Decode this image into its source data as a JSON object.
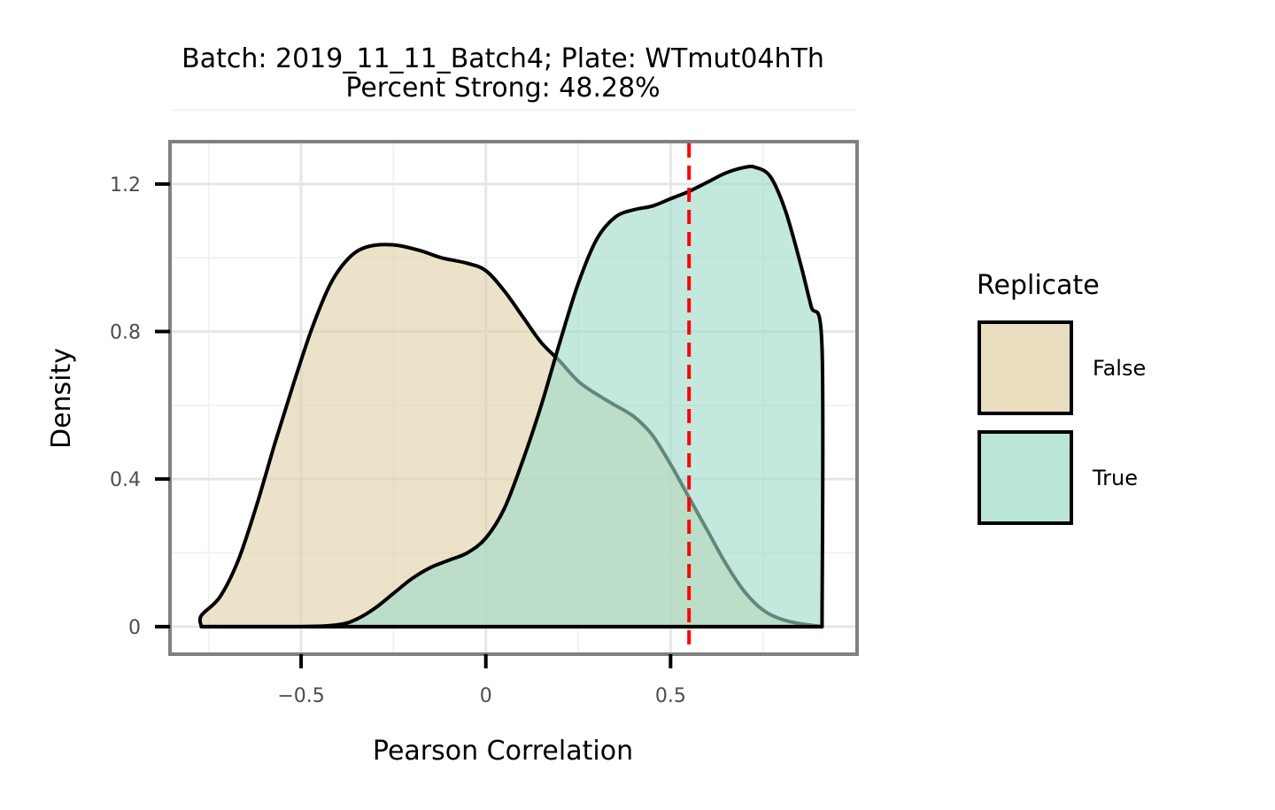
{
  "chart_data": {
    "type": "area",
    "title": "Batch: 2019_11_11_Batch4; Plate: WTmut04hTh",
    "subtitle": "Percent Strong: 48.28%",
    "xlabel": "Pearson Correlation",
    "ylabel": "Density",
    "xlim": [
      -0.85,
      1.0
    ],
    "ylim": [
      -0.07,
      1.31
    ],
    "x_ticks": [
      -0.5,
      0,
      0.5
    ],
    "x_tick_labels": [
      "−0.5",
      "0",
      "0.5"
    ],
    "y_ticks": [
      0,
      0.4,
      0.8,
      1.2
    ],
    "y_tick_labels": [
      "0",
      "0.4",
      "0.8",
      "1.2"
    ],
    "grid": true,
    "threshold": {
      "x": 0.55,
      "color": "#ff0000",
      "style": "dashed"
    },
    "legend": {
      "title": "Replicate",
      "position": "right"
    },
    "series": [
      {
        "name": "False",
        "fill": "#dfcfa5",
        "fill_opacity": 0.6,
        "points": [
          [
            -0.77,
            0.0
          ],
          [
            -0.77,
            0.03
          ],
          [
            -0.72,
            0.08
          ],
          [
            -0.67,
            0.18
          ],
          [
            -0.62,
            0.33
          ],
          [
            -0.57,
            0.5
          ],
          [
            -0.52,
            0.66
          ],
          [
            -0.47,
            0.81
          ],
          [
            -0.42,
            0.93
          ],
          [
            -0.37,
            1.0
          ],
          [
            -0.32,
            1.03
          ],
          [
            -0.25,
            1.035
          ],
          [
            -0.18,
            1.02
          ],
          [
            -0.12,
            1.0
          ],
          [
            -0.05,
            0.985
          ],
          [
            0.0,
            0.965
          ],
          [
            0.05,
            0.91
          ],
          [
            0.1,
            0.84
          ],
          [
            0.15,
            0.77
          ],
          [
            0.2,
            0.72
          ],
          [
            0.25,
            0.665
          ],
          [
            0.3,
            0.63
          ],
          [
            0.35,
            0.6
          ],
          [
            0.4,
            0.57
          ],
          [
            0.45,
            0.52
          ],
          [
            0.5,
            0.44
          ],
          [
            0.55,
            0.35
          ],
          [
            0.6,
            0.26
          ],
          [
            0.65,
            0.17
          ],
          [
            0.7,
            0.095
          ],
          [
            0.75,
            0.045
          ],
          [
            0.8,
            0.02
          ],
          [
            0.85,
            0.008
          ],
          [
            0.91,
            0.0
          ]
        ]
      },
      {
        "name": "True",
        "fill": "#9edcca",
        "fill_opacity": 0.62,
        "points": [
          [
            -0.77,
            0.0
          ],
          [
            -0.5,
            0.0
          ],
          [
            -0.4,
            0.005
          ],
          [
            -0.35,
            0.02
          ],
          [
            -0.3,
            0.05
          ],
          [
            -0.25,
            0.09
          ],
          [
            -0.2,
            0.13
          ],
          [
            -0.15,
            0.16
          ],
          [
            -0.1,
            0.18
          ],
          [
            -0.05,
            0.2
          ],
          [
            0.0,
            0.24
          ],
          [
            0.05,
            0.32
          ],
          [
            0.1,
            0.45
          ],
          [
            0.15,
            0.6
          ],
          [
            0.2,
            0.77
          ],
          [
            0.25,
            0.93
          ],
          [
            0.3,
            1.05
          ],
          [
            0.35,
            1.11
          ],
          [
            0.4,
            1.13
          ],
          [
            0.45,
            1.14
          ],
          [
            0.5,
            1.16
          ],
          [
            0.55,
            1.18
          ],
          [
            0.6,
            1.205
          ],
          [
            0.65,
            1.23
          ],
          [
            0.7,
            1.245
          ],
          [
            0.73,
            1.245
          ],
          [
            0.77,
            1.22
          ],
          [
            0.81,
            1.13
          ],
          [
            0.85,
            0.99
          ],
          [
            0.88,
            0.87
          ],
          [
            0.91,
            0.755
          ],
          [
            0.91,
            0.0
          ]
        ]
      }
    ]
  }
}
